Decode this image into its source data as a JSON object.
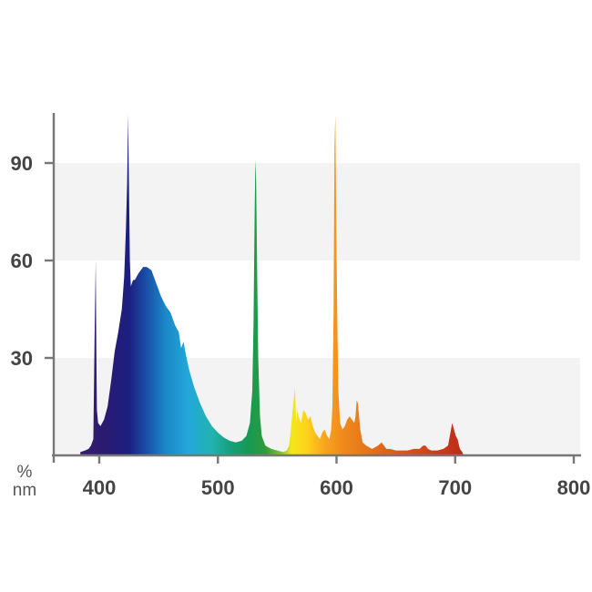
{
  "chart_data": {
    "type": "area",
    "title": "",
    "xlabel": "nm",
    "ylabel": "%",
    "xlim": [
      360,
      800
    ],
    "ylim": [
      0,
      105
    ],
    "x_ticks": [
      400,
      500,
      600,
      700,
      800
    ],
    "x_tick_labels": [
      "400",
      "500",
      "600",
      "700",
      "800"
    ],
    "y_ticks": [
      30,
      60,
      90
    ],
    "y_tick_labels": [
      "30",
      "60",
      "90"
    ],
    "grid": "alternating horizontal bands",
    "band_color": "#f3f3f3",
    "fill": "spectral rainbow gradient by wavelength",
    "series": [
      {
        "x": [
          384,
          388,
          391,
          393,
          395,
          396,
          397,
          397.5,
          398,
          399,
          401,
          404,
          407,
          410,
          413,
          416,
          419,
          421,
          422.5,
          423.5,
          424.3,
          425,
          425.8,
          426.6,
          427.5,
          428.5,
          430,
          433,
          437,
          440,
          444,
          448,
          452,
          456,
          460,
          464,
          467,
          469,
          471,
          473,
          476,
          480,
          485,
          490,
          495,
          500,
          505,
          510,
          515,
          520,
          524,
          527,
          529,
          530,
          531,
          531.6,
          532.2,
          533,
          534,
          535.5,
          537,
          540,
          545,
          550,
          555,
          558,
          560,
          561,
          563,
          565,
          566,
          567,
          568,
          570,
          572,
          574,
          576,
          578,
          580,
          582,
          584,
          586,
          588,
          590,
          592,
          594,
          595.5,
          596.5,
          597.5,
          598.3,
          599,
          599.8,
          600.6,
          601.5,
          603,
          605,
          607,
          609,
          611,
          613,
          615,
          616,
          617,
          618,
          619,
          620,
          622,
          625,
          630,
          635,
          638,
          640,
          642,
          645,
          650,
          655,
          660,
          665,
          670,
          673,
          675,
          677,
          680,
          685,
          690,
          694,
          696,
          697.5,
          699,
          700.5,
          702,
          704,
          706,
          707
        ],
        "y": [
          1,
          1.5,
          2,
          3,
          5,
          35,
          60,
          33,
          14,
          10,
          9,
          11,
          15,
          23,
          32,
          38,
          45,
          55,
          70,
          84,
          105,
          84,
          60,
          52,
          53,
          54,
          54,
          56,
          58,
          58,
          57,
          53,
          49,
          46,
          44,
          40,
          38,
          33,
          35,
          31,
          26,
          21,
          16,
          12,
          9,
          7,
          5.5,
          4.5,
          4,
          4.5,
          6,
          10,
          20,
          40,
          75,
          91,
          85,
          60,
          30,
          12,
          6,
          3,
          2,
          1.5,
          1,
          1.5,
          3,
          6,
          14,
          21,
          10,
          14,
          12,
          10,
          14,
          13,
          11,
          12,
          9,
          7,
          6,
          5,
          7,
          8,
          6,
          5,
          8,
          15,
          44,
          95,
          105,
          70,
          44,
          20,
          10,
          8,
          9,
          11,
          12,
          11,
          10,
          12,
          17,
          16,
          12,
          8,
          4,
          3,
          2,
          3,
          4,
          3,
          2,
          2,
          1.5,
          1.5,
          1.5,
          2,
          2,
          3,
          3,
          2,
          1.5,
          1.5,
          2,
          3,
          7,
          10,
          8,
          6,
          5,
          2,
          1,
          0
        ]
      }
    ]
  }
}
